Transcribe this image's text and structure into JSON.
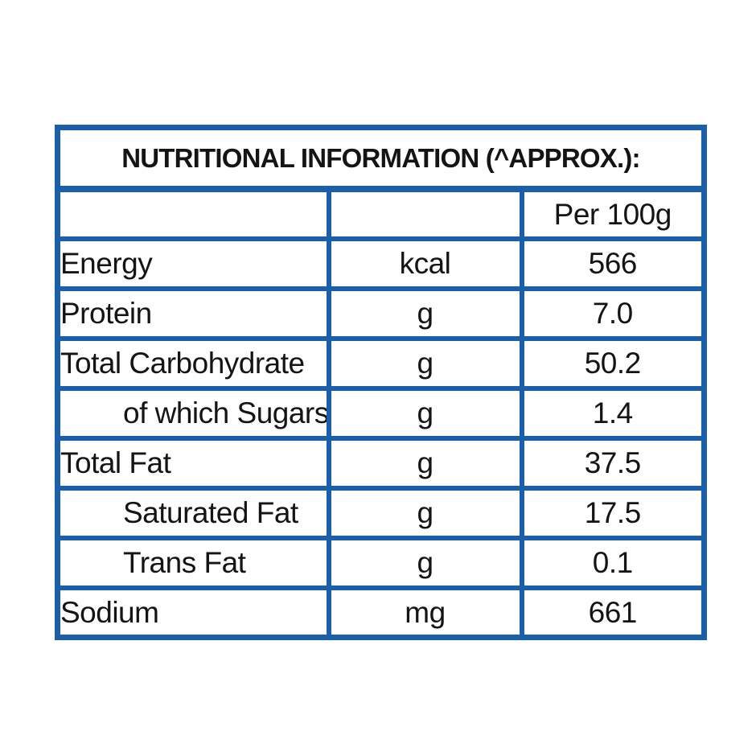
{
  "label": {
    "title": "NUTRITIONAL INFORMATION (^APPROX.):",
    "column_headers": {
      "nutrient": "",
      "unit": "",
      "amount": "Per 100g"
    },
    "rows": [
      {
        "nutrient": "Energy",
        "unit": "kcal",
        "amount": "566",
        "indented": false
      },
      {
        "nutrient": "Protein",
        "unit": "g",
        "amount": "7.0",
        "indented": false
      },
      {
        "nutrient": "Total Carbohydrate",
        "unit": "g",
        "amount": "50.2",
        "indented": false
      },
      {
        "nutrient": "of which Sugars",
        "unit": "g",
        "amount": "1.4",
        "indented": true
      },
      {
        "nutrient": "Total Fat",
        "unit": "g",
        "amount": "37.5",
        "indented": false
      },
      {
        "nutrient": "Saturated Fat",
        "unit": "g",
        "amount": "17.5",
        "indented": true
      },
      {
        "nutrient": "Trans Fat",
        "unit": "g",
        "amount": "0.1",
        "indented": true
      },
      {
        "nutrient": "Sodium",
        "unit": "mg",
        "amount": "661",
        "indented": false
      }
    ],
    "colors": {
      "border_blue": "#1b5ea9",
      "text": "#141414",
      "background": "#ffffff"
    }
  }
}
